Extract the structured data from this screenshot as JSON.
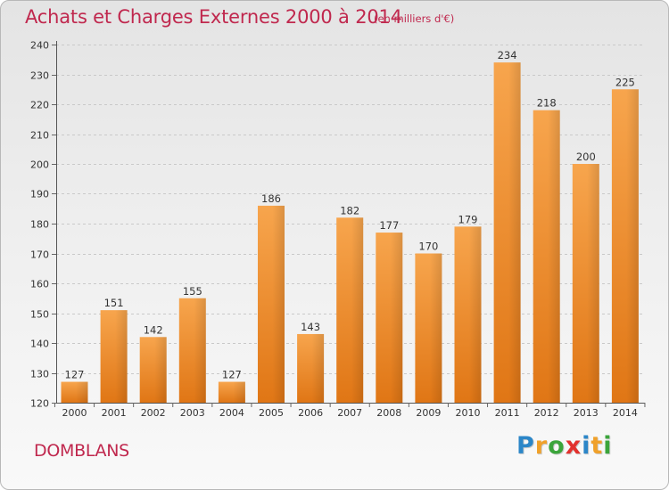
{
  "header": {
    "title": "Achats et Charges Externes 2000 à 2014",
    "unit": "(en milliers d'€)"
  },
  "footer": {
    "commune": "DOMBLANS",
    "logo_text": "Proxiti",
    "logo_letters": [
      {
        "ch": "P",
        "color": "#2b86c8"
      },
      {
        "ch": "r",
        "color": "#f0a12a"
      },
      {
        "ch": "o",
        "color": "#3ba53b"
      },
      {
        "ch": "x",
        "color": "#e2312d"
      },
      {
        "ch": "i",
        "color": "#2b86c8"
      },
      {
        "ch": "t",
        "color": "#f0a12a"
      },
      {
        "ch": "i",
        "color": "#3ba53b"
      }
    ]
  },
  "chart_data": {
    "type": "bar",
    "categories": [
      "2000",
      "2001",
      "2002",
      "2003",
      "2004",
      "2005",
      "2006",
      "2007",
      "2008",
      "2009",
      "2010",
      "2011",
      "2012",
      "2013",
      "2014"
    ],
    "values": [
      127,
      151,
      142,
      155,
      127,
      186,
      143,
      182,
      177,
      170,
      179,
      234,
      218,
      200,
      225
    ],
    "ylim": [
      120,
      240
    ],
    "yticks": [
      120,
      130,
      140,
      150,
      160,
      170,
      180,
      190,
      200,
      210,
      220,
      230,
      240
    ],
    "grid": true,
    "bar_color": "#f28e2b"
  }
}
